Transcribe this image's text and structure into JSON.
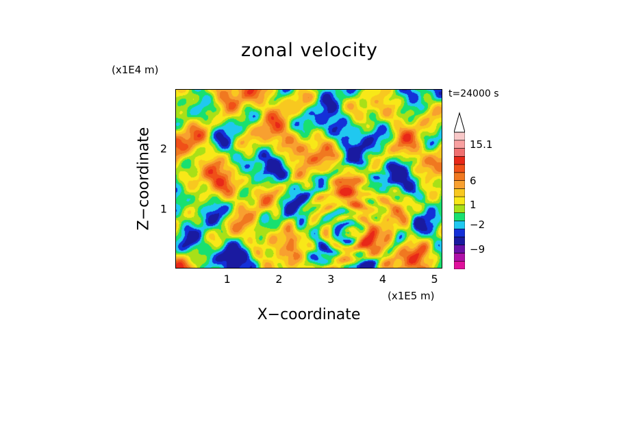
{
  "chart_data": {
    "type": "heatmap",
    "title": "zonal velocity",
    "xlabel": "X−coordinate",
    "ylabel": "Z−coordinate",
    "x_unit": "(x1E5 m)",
    "y_unit": "(x1E4 m)",
    "annotation": "t=24000 s",
    "xlim": [
      0,
      5.15
    ],
    "ylim": [
      0,
      3.0
    ],
    "x_ticks": [
      "1",
      "2",
      "3",
      "4",
      "5"
    ],
    "x_tick_values": [
      1,
      2,
      3,
      4,
      5
    ],
    "y_ticks": [
      "1",
      "2"
    ],
    "y_tick_values": [
      1,
      2
    ],
    "colorbar": {
      "labels": [
        "15.1",
        "6",
        "1",
        "−2",
        "−9"
      ],
      "label_values": [
        15.1,
        6,
        1,
        -2,
        -9
      ],
      "extend": "max",
      "colors": [
        "#e0109c",
        "#b010a8",
        "#6a10a8",
        "#1a1aa0",
        "#1430d8",
        "#20c8f0",
        "#18e070",
        "#a8e018",
        "#f8e818",
        "#f8c820",
        "#f8a030",
        "#f07820",
        "#f05018",
        "#e82818",
        "#f07070",
        "#f8a0a0",
        "#f8c8c8",
        "#ffffff"
      ]
    }
  }
}
